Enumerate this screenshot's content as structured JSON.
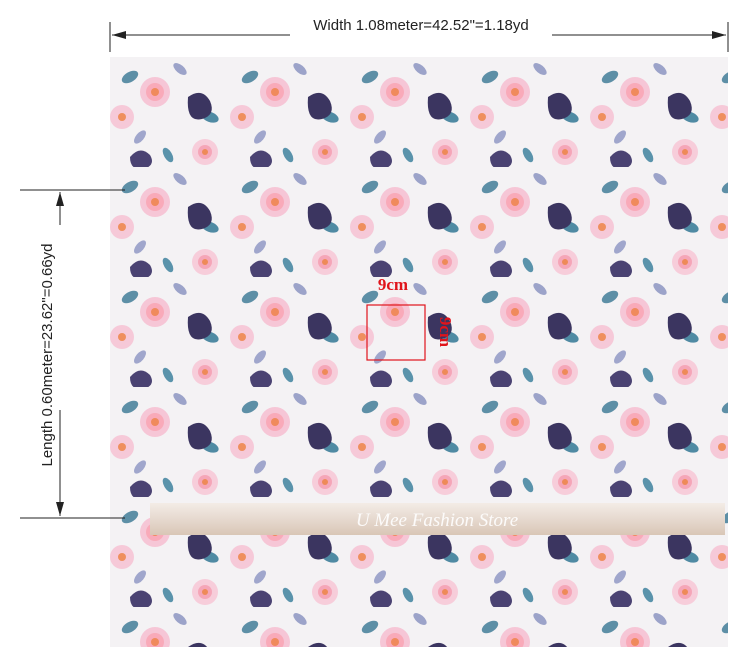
{
  "dimensions": {
    "width": "Width 1.08meter=42.52\"=1.18yd",
    "length": "Length 0.60meter=23.62\"=0.66yd"
  },
  "swatch": {
    "width_label": "9cm",
    "height_label": "9cm"
  },
  "watermark": "U Mee Fashion Store"
}
